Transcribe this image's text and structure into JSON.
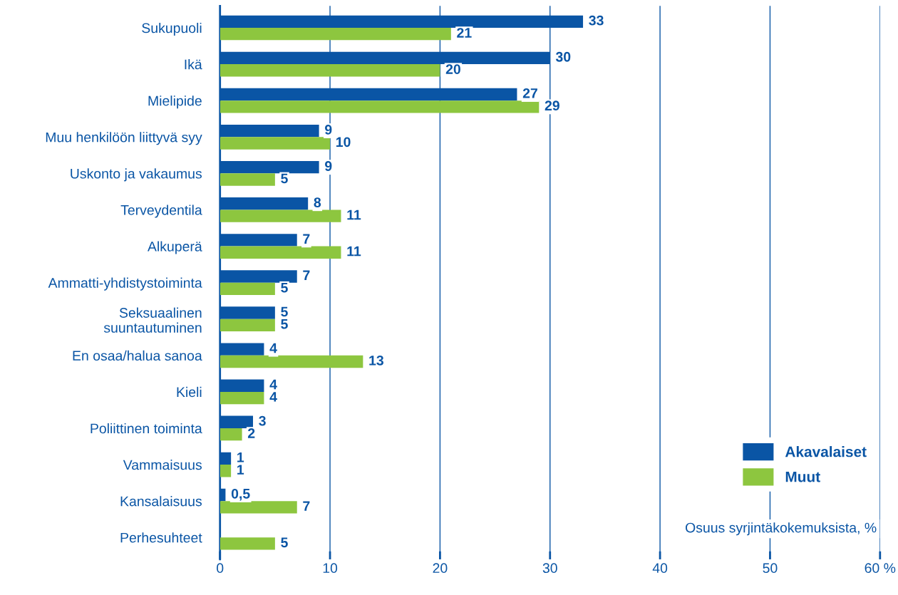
{
  "chart_data": {
    "type": "bar",
    "orientation": "horizontal",
    "categories": [
      "Sukupuoli",
      "Ikä",
      "Mielipide",
      "Muu henkilöön liittyvä syy",
      "Uskonto ja vakaumus",
      "Terveydentila",
      "Alkuperä",
      "Ammatti-yhdistystoiminta",
      "Seksuaalinen\nsuuntautuminen",
      "En osaa/halua sanoa",
      "Kieli",
      "Poliittinen toiminta",
      "Vammaisuus",
      "Kansalaisuus",
      "Perhesuhteet"
    ],
    "series": [
      {
        "name": "Akavalaiset",
        "color": "#0a55a5",
        "values": [
          33,
          30,
          27,
          9,
          9,
          8,
          7,
          7,
          5,
          4,
          4,
          3,
          1,
          0.5,
          null
        ],
        "value_labels": [
          "33",
          "30",
          "27",
          "9",
          "9",
          "8",
          "7",
          "7",
          "5",
          "4",
          "4",
          "3",
          "1",
          "0,5",
          null
        ]
      },
      {
        "name": "Muut",
        "color": "#8dc63f",
        "values": [
          21,
          20,
          29,
          10,
          5,
          11,
          11,
          5,
          5,
          13,
          4,
          2,
          1,
          7,
          5
        ],
        "value_labels": [
          "21",
          "20",
          "29",
          "10",
          "5",
          "11",
          "11",
          "5",
          "5",
          "13",
          "4",
          "2",
          "1",
          "7",
          "5"
        ]
      }
    ],
    "xlim": [
      0,
      60
    ],
    "xticks": [
      0,
      10,
      20,
      30,
      40,
      50,
      {
        "value": 60,
        "label": "60 %"
      }
    ],
    "grid": "x",
    "legend": "bottom right",
    "annotations": [
      "Osuus syrjintäkokemuksista, %"
    ]
  }
}
